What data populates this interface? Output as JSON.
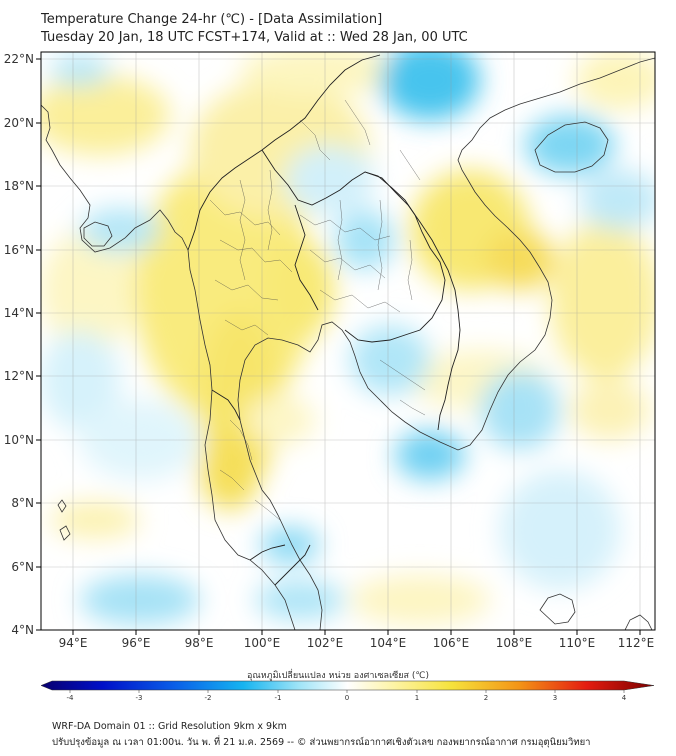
{
  "header": {
    "title": "Temperature Change 24-hr (℃) - [Data Assimilation]",
    "subtitle": "Tuesday 20 Jan, 18 UTC FCST+174, Valid at :: Wed 28 Jan, 00 UTC"
  },
  "axes": {
    "lat_labels": [
      "22°N",
      "20°N",
      "18°N",
      "16°N",
      "14°N",
      "12°N",
      "10°N",
      "8°N",
      "6°N",
      "4°N"
    ],
    "lon_labels": [
      "94°E",
      "96°E",
      "98°E",
      "100°E",
      "102°E",
      "104°E",
      "106°E",
      "108°E",
      "110°E",
      "112°E"
    ],
    "lat_range": [
      4,
      22
    ],
    "lon_range": [
      93,
      112.5
    ]
  },
  "colorbar": {
    "title": "อุณหภูมิเปลี่ยนแปลง หน่วย องศาเซลเซียส (℃)",
    "labels": [
      "-4",
      "-3",
      "-2",
      "-1",
      "0",
      "1",
      "2",
      "3",
      "4"
    ],
    "range": [
      -4,
      4
    ]
  },
  "footer": {
    "line1": "WRF-DA Domain 01 :: Grid Resolution 9km x 9km",
    "line2": "ปรับปรุงข้อมูล ณ เวลา 01:00น. วัน พ. ที่ 21 ม.ค. 2569 -- © ส่วนพยากรณ์อากาศเชิงตัวเลข กองพยากรณ์อากาศ กรมอุตุนิยมวิทยา"
  }
}
